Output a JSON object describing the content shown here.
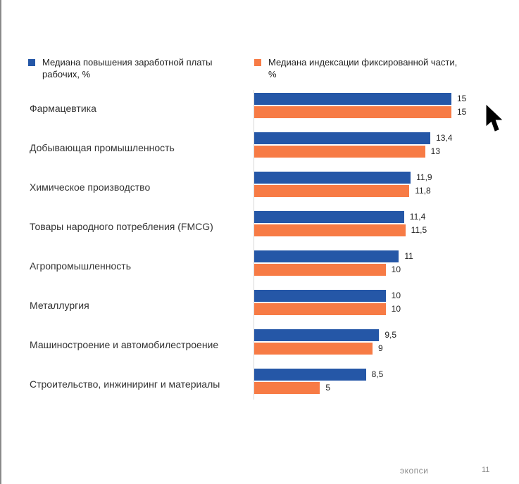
{
  "legend": [
    {
      "label": "Медиана повышения заработной платы рабочих, %",
      "color": "#2557a7"
    },
    {
      "label": "Медиана индексации фиксированной части, %",
      "color": "#f77b45"
    }
  ],
  "chart_data": {
    "type": "bar",
    "orientation": "horizontal",
    "title": "",
    "xlabel": "",
    "ylabel": "",
    "categories": [
      "Фармацевтика",
      "Добывающая промышленность",
      "Химическое производство",
      "Товары народного потребления (FMCG)",
      "Агропромышленность",
      "Металлургия",
      "Машиностроение и автомобилестроение",
      "Строительство, инжиниринг и материалы"
    ],
    "series": [
      {
        "name": "Медиана повышения заработной платы рабочих, %",
        "color": "#2557a7",
        "values": [
          15,
          13.4,
          11.9,
          11.4,
          11,
          10,
          9.5,
          8.5
        ],
        "labels": [
          "15",
          "13,4",
          "11,9",
          "11,4",
          "11",
          "10",
          "9,5",
          "8,5"
        ]
      },
      {
        "name": "Медиана индексации фиксированной части, %",
        "color": "#f77b45",
        "values": [
          15,
          13,
          11.8,
          11.5,
          10,
          10,
          9,
          5
        ],
        "labels": [
          "15",
          "13",
          "11,8",
          "11,5",
          "10",
          "10",
          "9",
          "5"
        ]
      }
    ],
    "xlim": [
      0,
      15
    ],
    "grid": false,
    "legend_position": "top"
  },
  "footer": {
    "brand": "экопси",
    "page": "11"
  }
}
